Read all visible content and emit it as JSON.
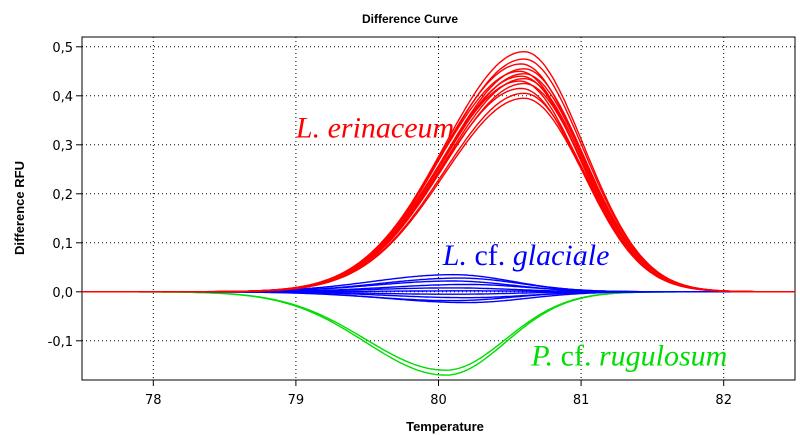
{
  "chart_data": {
    "type": "line",
    "title": "Difference Curve",
    "xlabel": "Temperature",
    "ylabel": "Difference RFU",
    "xlim": [
      77.5,
      82.5
    ],
    "ylim": [
      -0.18,
      0.52
    ],
    "xticks": [
      78,
      79,
      80,
      81,
      82
    ],
    "xtick_labels": [
      "78",
      "79",
      "80",
      "81",
      "82"
    ],
    "yticks": [
      -0.1,
      0.0,
      0.1,
      0.2,
      0.3,
      0.4,
      0.5
    ],
    "ytick_labels": [
      "-0,1",
      "0,0",
      "0,1",
      "0,2",
      "0,3",
      "0,4",
      "0,5"
    ],
    "grid": true,
    "series_groups": [
      {
        "color": "#ff0000",
        "curves": [
          {
            "peak_x": 80.6,
            "peak_y": 0.49
          },
          {
            "peak_x": 80.6,
            "peak_y": 0.475
          },
          {
            "peak_x": 80.58,
            "peak_y": 0.465
          },
          {
            "peak_x": 80.6,
            "peak_y": 0.455
          },
          {
            "peak_x": 80.57,
            "peak_y": 0.45
          },
          {
            "peak_x": 80.6,
            "peak_y": 0.445
          },
          {
            "peak_x": 80.58,
            "peak_y": 0.44
          },
          {
            "peak_x": 80.6,
            "peak_y": 0.435
          },
          {
            "peak_x": 80.57,
            "peak_y": 0.43
          },
          {
            "peak_x": 80.6,
            "peak_y": 0.425
          },
          {
            "peak_x": 80.58,
            "peak_y": 0.415
          },
          {
            "peak_x": 80.6,
            "peak_y": 0.405
          },
          {
            "peak_x": 80.6,
            "peak_y": 0.395
          }
        ]
      },
      {
        "color": "#0000ff",
        "curves": [
          {
            "peak_x": 80.1,
            "peak_y": 0.035
          },
          {
            "peak_x": 80.15,
            "peak_y": 0.028
          },
          {
            "peak_x": 80.1,
            "peak_y": 0.022
          },
          {
            "peak_x": 80.2,
            "peak_y": 0.015
          },
          {
            "peak_x": 80.1,
            "peak_y": 0.008
          },
          {
            "peak_x": 80.2,
            "peak_y": 0.002
          },
          {
            "peak_x": 80.1,
            "peak_y": -0.005
          },
          {
            "peak_x": 80.2,
            "peak_y": -0.012
          },
          {
            "peak_x": 80.1,
            "peak_y": -0.018
          },
          {
            "peak_x": 80.2,
            "peak_y": -0.022
          }
        ]
      },
      {
        "color": "#00dd00",
        "curves": [
          {
            "peak_x": 80.05,
            "peak_y": -0.16
          },
          {
            "peak_x": 80.05,
            "peak_y": -0.17
          }
        ]
      }
    ],
    "annotations": [
      {
        "parts": [
          {
            "text": "L. erinaceum",
            "italic": true
          }
        ],
        "color": "#ff0000",
        "x": 79.0,
        "y": 0.315
      },
      {
        "parts": [
          {
            "text": "L. ",
            "italic": true
          },
          {
            "text": "cf. ",
            "italic": false
          },
          {
            "text": "glaciale",
            "italic": true
          }
        ],
        "color": "#0000ff",
        "x": 80.03,
        "y": 0.055
      },
      {
        "parts": [
          {
            "text": "P. ",
            "italic": true
          },
          {
            "text": "cf. ",
            "italic": false
          },
          {
            "text": "rugulosum",
            "italic": true
          }
        ],
        "color": "#00dd00",
        "x": 80.65,
        "y": -0.15
      }
    ]
  }
}
